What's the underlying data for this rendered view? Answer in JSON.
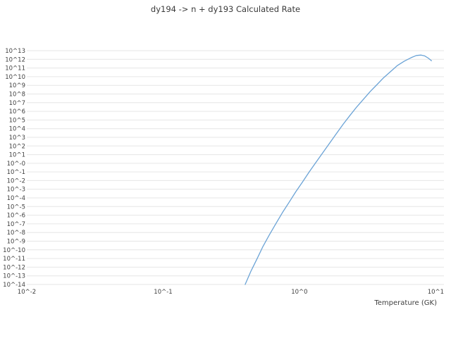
{
  "chart_data": {
    "type": "line",
    "title": "dy194 -> n + dy193 Calculated Rate",
    "xlabel": "Temperature (GK)",
    "ylabel": "",
    "xscale": "log",
    "yscale": "log",
    "grid": true,
    "grid_color": "#e6e6e6",
    "background_color": "#ffffff",
    "legend": "none",
    "xlim_log": [
      -2,
      1.06
    ],
    "ylim_log": [
      -14.49,
      13.49
    ],
    "x_ticks": [
      {
        "label": "10^-2",
        "log": -2
      },
      {
        "label": "10^-1",
        "log": -1
      },
      {
        "label": "10^0",
        "log": 0
      },
      {
        "label": "10^1",
        "log": 1
      }
    ],
    "y_ticks": [
      {
        "label": "10^13",
        "log": 13
      },
      {
        "label": "10^12",
        "log": 12
      },
      {
        "label": "10^11",
        "log": 11
      },
      {
        "label": "10^10",
        "log": 10
      },
      {
        "label": "10^9",
        "log": 9
      },
      {
        "label": "10^8",
        "log": 8
      },
      {
        "label": "10^7",
        "log": 7
      },
      {
        "label": "10^6",
        "log": 6
      },
      {
        "label": "10^5",
        "log": 5
      },
      {
        "label": "10^4",
        "log": 4
      },
      {
        "label": "10^3",
        "log": 3
      },
      {
        "label": "10^2",
        "log": 2
      },
      {
        "label": "10^1",
        "log": 1
      },
      {
        "label": "10^-0",
        "log": 0
      },
      {
        "label": "10^-1",
        "log": -1
      },
      {
        "label": "10^-2",
        "log": -2
      },
      {
        "label": "10^-3",
        "log": -3
      },
      {
        "label": "10^-4",
        "log": -4
      },
      {
        "label": "10^-5",
        "log": -5
      },
      {
        "label": "10^-6",
        "log": -6
      },
      {
        "label": "10^-7",
        "log": -7
      },
      {
        "label": "10^-8",
        "log": -8
      },
      {
        "label": "10^-9",
        "log": -9
      },
      {
        "label": "10^-10",
        "log": -10
      },
      {
        "label": "10^-11",
        "log": -11
      },
      {
        "label": "10^-12",
        "log": -12
      },
      {
        "label": "10^-13",
        "log": -13
      },
      {
        "label": "10^-14",
        "log": -14
      }
    ],
    "series": [
      {
        "name": "Calculated Rate",
        "color": "#6ba3d6",
        "x_gk": [
          0.4,
          0.44,
          0.49,
          0.54,
          0.6,
          0.67,
          0.75,
          0.84,
          0.94,
          1.05,
          1.18,
          1.32,
          1.48,
          1.66,
          1.86,
          2.09,
          2.34,
          2.63,
          2.95,
          3.31,
          3.71,
          4.16,
          4.67,
          5.24,
          5.88,
          6.59,
          7.2,
          7.8,
          8.3,
          8.8,
          9.3
        ],
        "log10_rate": [
          -14.0,
          -12.5,
          -11.0,
          -9.6,
          -8.3,
          -7.0,
          -5.7,
          -4.5,
          -3.3,
          -2.2,
          -1.0,
          0.1,
          1.2,
          2.3,
          3.4,
          4.5,
          5.5,
          6.5,
          7.4,
          8.3,
          9.1,
          9.9,
          10.6,
          11.3,
          11.8,
          12.2,
          12.45,
          12.5,
          12.4,
          12.15,
          11.85
        ]
      }
    ]
  }
}
